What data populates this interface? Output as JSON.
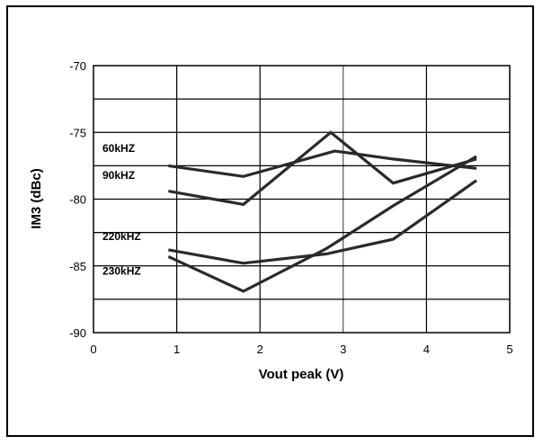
{
  "chart_data": {
    "type": "line",
    "title": "",
    "xlabel": "Vout peak (V)",
    "ylabel": "IM3 (dBc)",
    "xlim": [
      0,
      5
    ],
    "ylim": [
      -90,
      -70
    ],
    "x_ticks": [
      "0",
      "1",
      "2",
      "3",
      "4",
      "5"
    ],
    "y_ticks": [
      "-70",
      "-75",
      "-80",
      "-85",
      "-90"
    ],
    "grid": true,
    "series": [
      {
        "name": "60kHZ",
        "x": [
          0.9,
          1.8,
          2.9,
          3.6,
          4.6
        ],
        "y": [
          -77.5,
          -78.3,
          -76.4,
          -77.0,
          -77.7
        ]
      },
      {
        "name": "90kHZ",
        "x": [
          0.9,
          1.8,
          2.85,
          3.6,
          4.6
        ],
        "y": [
          -79.4,
          -80.4,
          -75.0,
          -78.8,
          -77.0
        ]
      },
      {
        "name": "220kHZ",
        "x": [
          0.9,
          1.8,
          2.8,
          3.6,
          4.6
        ],
        "y": [
          -83.8,
          -84.8,
          -84.1,
          -83.0,
          -78.6
        ]
      },
      {
        "name": "230kHZ",
        "x": [
          0.9,
          1.8,
          2.8,
          3.6,
          4.6
        ],
        "y": [
          -84.3,
          -86.9,
          -83.7,
          -80.5,
          -76.8
        ]
      }
    ],
    "colors": {
      "line": "#2a2a2a",
      "grid": "#000000",
      "background": "#ffffff"
    }
  }
}
